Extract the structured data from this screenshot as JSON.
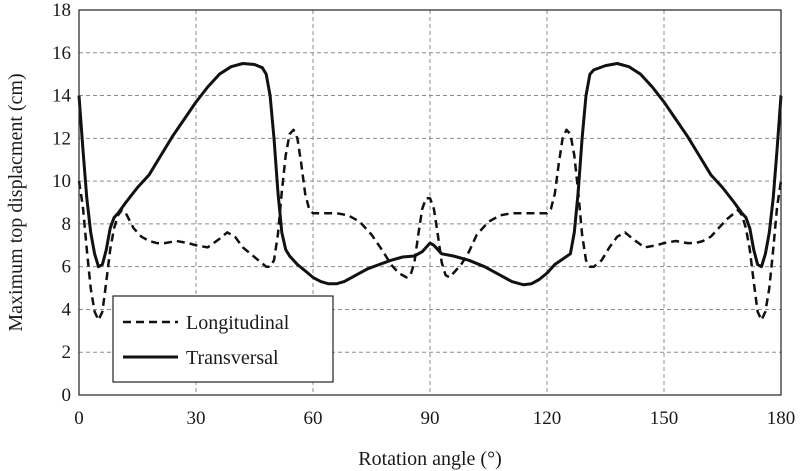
{
  "chart_data": {
    "type": "line",
    "xlabel": "Rotation angle (°)",
    "ylabel": "Maximum top displacment (cm)",
    "xlim": [
      0,
      180
    ],
    "ylim": [
      0,
      18
    ],
    "x_ticks": [
      0,
      30,
      60,
      90,
      120,
      150,
      180
    ],
    "y_ticks": [
      0,
      2,
      4,
      6,
      8,
      10,
      12,
      14,
      16,
      18
    ],
    "grid": true,
    "legend_position": "bottom-left",
    "series": [
      {
        "name": "Longitudinal",
        "style": "dashed",
        "color": "#111111",
        "points": [
          [
            0,
            10.0
          ],
          [
            1,
            8.8
          ],
          [
            2,
            6.8
          ],
          [
            3,
            5.0
          ],
          [
            4,
            3.9
          ],
          [
            5,
            3.5
          ],
          [
            6,
            3.9
          ],
          [
            7,
            5.3
          ],
          [
            8,
            6.8
          ],
          [
            9,
            7.8
          ],
          [
            10,
            8.4
          ],
          [
            11,
            8.65
          ],
          [
            12,
            8.5
          ],
          [
            14,
            7.8
          ],
          [
            16,
            7.4
          ],
          [
            18,
            7.2
          ],
          [
            20,
            7.1
          ],
          [
            22,
            7.1
          ],
          [
            25,
            7.2
          ],
          [
            28,
            7.1
          ],
          [
            30,
            7.0
          ],
          [
            33,
            6.9
          ],
          [
            36,
            7.3
          ],
          [
            38,
            7.6
          ],
          [
            40,
            7.4
          ],
          [
            42,
            6.9
          ],
          [
            44,
            6.6
          ],
          [
            46,
            6.3
          ],
          [
            48,
            6.0
          ],
          [
            49,
            6.0
          ],
          [
            50,
            6.3
          ],
          [
            51,
            7.5
          ],
          [
            52,
            9.5
          ],
          [
            53,
            11.2
          ],
          [
            54,
            12.2
          ],
          [
            55,
            12.4
          ],
          [
            56,
            12.0
          ],
          [
            57,
            10.8
          ],
          [
            58,
            9.4
          ],
          [
            59,
            8.7
          ],
          [
            60,
            8.5
          ],
          [
            63,
            8.5
          ],
          [
            66,
            8.5
          ],
          [
            69,
            8.4
          ],
          [
            72,
            8.1
          ],
          [
            75,
            7.5
          ],
          [
            78,
            6.7
          ],
          [
            80,
            6.1
          ],
          [
            82,
            5.7
          ],
          [
            84,
            5.5
          ],
          [
            85,
            5.6
          ],
          [
            86,
            6.2
          ],
          [
            87,
            7.5
          ],
          [
            88,
            8.7
          ],
          [
            89,
            9.2
          ],
          [
            90,
            9.2
          ],
          [
            91,
            8.7
          ],
          [
            92,
            7.5
          ],
          [
            93,
            6.2
          ],
          [
            94,
            5.6
          ],
          [
            95,
            5.5
          ],
          [
            96,
            5.7
          ],
          [
            98,
            6.1
          ],
          [
            100,
            6.7
          ],
          [
            102,
            7.5
          ],
          [
            105,
            8.1
          ],
          [
            108,
            8.4
          ],
          [
            111,
            8.5
          ],
          [
            114,
            8.5
          ],
          [
            117,
            8.5
          ],
          [
            120,
            8.5
          ],
          [
            121,
            8.7
          ],
          [
            122,
            9.4
          ],
          [
            123,
            10.8
          ],
          [
            124,
            12.0
          ],
          [
            125,
            12.4
          ],
          [
            126,
            12.2
          ],
          [
            127,
            11.2
          ],
          [
            128,
            9.5
          ],
          [
            129,
            7.5
          ],
          [
            130,
            6.3
          ],
          [
            131,
            6.0
          ],
          [
            132,
            6.0
          ],
          [
            134,
            6.3
          ],
          [
            136,
            6.9
          ],
          [
            138,
            7.4
          ],
          [
            140,
            7.6
          ],
          [
            142,
            7.3
          ],
          [
            145,
            6.9
          ],
          [
            148,
            7.0
          ],
          [
            150,
            7.1
          ],
          [
            153,
            7.2
          ],
          [
            156,
            7.1
          ],
          [
            158,
            7.1
          ],
          [
            160,
            7.2
          ],
          [
            162,
            7.4
          ],
          [
            164,
            7.8
          ],
          [
            166,
            8.2
          ],
          [
            168,
            8.5
          ],
          [
            169,
            8.65
          ],
          [
            170,
            8.4
          ],
          [
            171,
            7.8
          ],
          [
            172,
            6.8
          ],
          [
            173,
            5.3
          ],
          [
            174,
            3.9
          ],
          [
            175,
            3.5
          ],
          [
            176,
            3.9
          ],
          [
            177,
            5.0
          ],
          [
            178,
            6.8
          ],
          [
            179,
            8.8
          ],
          [
            180,
            10.0
          ]
        ]
      },
      {
        "name": "Transversal",
        "style": "solid",
        "color": "#111111",
        "points": [
          [
            0,
            14.0
          ],
          [
            1,
            11.5
          ],
          [
            2,
            9.2
          ],
          [
            3,
            7.6
          ],
          [
            4,
            6.6
          ],
          [
            5,
            6.0
          ],
          [
            6,
            6.1
          ],
          [
            7,
            6.8
          ],
          [
            8,
            7.8
          ],
          [
            9,
            8.3
          ],
          [
            10,
            8.5
          ],
          [
            12,
            9.0
          ],
          [
            15,
            9.7
          ],
          [
            18,
            10.3
          ],
          [
            21,
            11.2
          ],
          [
            24,
            12.1
          ],
          [
            27,
            12.9
          ],
          [
            30,
            13.7
          ],
          [
            33,
            14.4
          ],
          [
            36,
            15.0
          ],
          [
            39,
            15.35
          ],
          [
            42,
            15.5
          ],
          [
            45,
            15.45
          ],
          [
            47,
            15.3
          ],
          [
            48,
            15.0
          ],
          [
            49,
            14.0
          ],
          [
            50,
            12.0
          ],
          [
            51,
            9.5
          ],
          [
            52,
            7.6
          ],
          [
            53,
            6.8
          ],
          [
            54,
            6.5
          ],
          [
            56,
            6.1
          ],
          [
            58,
            5.8
          ],
          [
            60,
            5.5
          ],
          [
            62,
            5.3
          ],
          [
            64,
            5.2
          ],
          [
            66,
            5.2
          ],
          [
            68,
            5.3
          ],
          [
            71,
            5.6
          ],
          [
            74,
            5.9
          ],
          [
            77,
            6.1
          ],
          [
            80,
            6.3
          ],
          [
            83,
            6.45
          ],
          [
            86,
            6.5
          ],
          [
            88,
            6.7
          ],
          [
            90,
            7.1
          ],
          [
            91,
            7.0
          ],
          [
            93,
            6.6
          ],
          [
            96,
            6.5
          ],
          [
            100,
            6.3
          ],
          [
            104,
            6.0
          ],
          [
            108,
            5.6
          ],
          [
            111,
            5.3
          ],
          [
            114,
            5.15
          ],
          [
            116,
            5.2
          ],
          [
            118,
            5.4
          ],
          [
            120,
            5.7
          ],
          [
            122,
            6.1
          ],
          [
            126,
            6.6
          ],
          [
            127,
            7.6
          ],
          [
            128,
            9.5
          ],
          [
            129,
            12.0
          ],
          [
            130,
            14.0
          ],
          [
            131,
            15.0
          ],
          [
            132,
            15.2
          ],
          [
            135,
            15.4
          ],
          [
            138,
            15.5
          ],
          [
            141,
            15.35
          ],
          [
            144,
            15.0
          ],
          [
            147,
            14.4
          ],
          [
            150,
            13.7
          ],
          [
            153,
            12.9
          ],
          [
            156,
            12.1
          ],
          [
            159,
            11.2
          ],
          [
            162,
            10.3
          ],
          [
            165,
            9.7
          ],
          [
            168,
            9.0
          ],
          [
            170,
            8.5
          ],
          [
            171,
            8.3
          ],
          [
            172,
            7.8
          ],
          [
            173,
            6.8
          ],
          [
            174,
            6.1
          ],
          [
            175,
            6.0
          ],
          [
            176,
            6.6
          ],
          [
            177,
            7.6
          ],
          [
            178,
            9.2
          ],
          [
            179,
            11.5
          ],
          [
            180,
            14.0
          ]
        ]
      }
    ]
  }
}
